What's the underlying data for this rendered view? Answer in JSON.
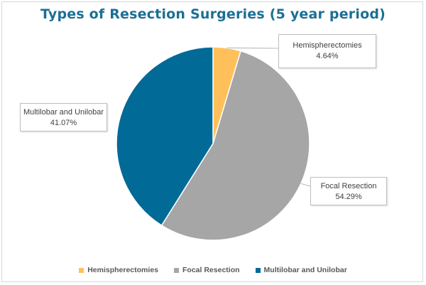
{
  "chart_data": {
    "type": "pie",
    "title": "Types of Resection Surgeries (5 year period)",
    "slices": [
      {
        "name": "Hemispherectomies",
        "value": 4.64,
        "label": "4.64%",
        "color": "#ffc05c"
      },
      {
        "name": "Focal Resection",
        "value": 54.29,
        "label": "54.29%",
        "color": "#a6a6a6"
      },
      {
        "name": "Multilobar and Unilobar",
        "value": 41.07,
        "label": "41.07%",
        "color": "#016a96"
      }
    ],
    "legend_position": "bottom"
  }
}
